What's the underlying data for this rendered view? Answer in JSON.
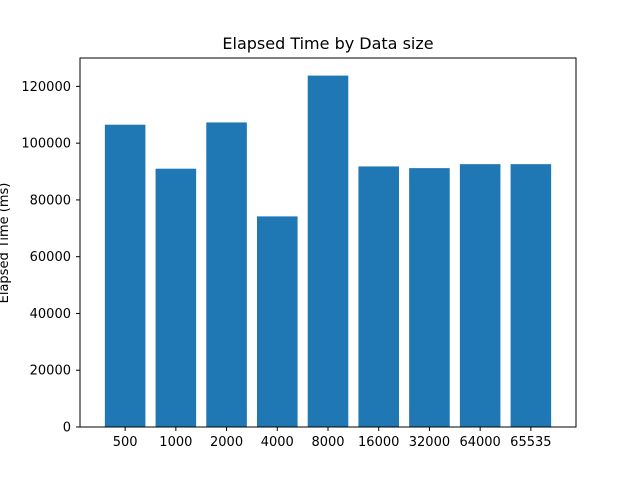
{
  "chart_data": {
    "type": "bar",
    "title": "Elapsed Time by Data size",
    "xlabel": "",
    "ylabel": "Elapsed Time (ms)",
    "categories": [
      "500",
      "1000",
      "2000",
      "4000",
      "8000",
      "16000",
      "32000",
      "64000",
      "65535"
    ],
    "values": [
      106500,
      91000,
      107300,
      74200,
      123800,
      91800,
      91200,
      92600,
      92600
    ],
    "ylim": [
      0,
      130000
    ],
    "yticks": [
      0,
      20000,
      40000,
      60000,
      80000,
      100000,
      120000
    ],
    "ytick_labels": [
      "0",
      "20000",
      "40000",
      "60000",
      "80000",
      "100000",
      "120000"
    ],
    "grid": false,
    "legend": "none",
    "bar_color": "#1f77b4"
  }
}
